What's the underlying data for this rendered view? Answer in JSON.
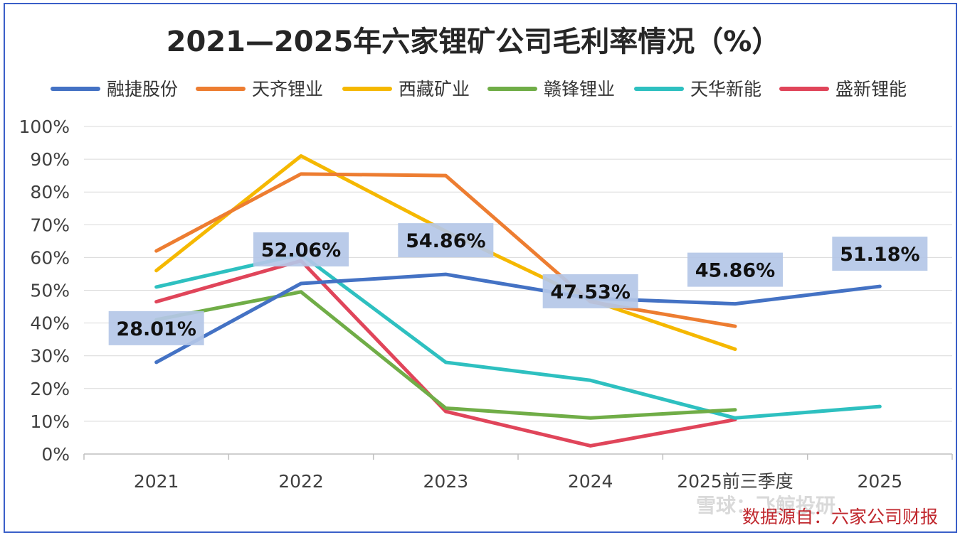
{
  "chart_data": {
    "type": "line",
    "title": "2021—2025年六家锂矿公司毛利率情况（%）",
    "categories": [
      "2021",
      "2022",
      "2023",
      "2024",
      "2025前三季度",
      "2025"
    ],
    "y_ticks": [
      "0%",
      "10%",
      "20%",
      "30%",
      "40%",
      "50%",
      "60%",
      "70%",
      "80%",
      "90%",
      "100%"
    ],
    "ylim": [
      0,
      100
    ],
    "legend_position": "top",
    "grid": true,
    "series": [
      {
        "name": "融捷股份",
        "color": "#4472c4",
        "values": [
          28.01,
          52.06,
          54.86,
          47.53,
          45.86,
          51.18
        ]
      },
      {
        "name": "天齐锂业",
        "color": "#ed7d31",
        "values": [
          62,
          85.5,
          85,
          46.5,
          39,
          null
        ]
      },
      {
        "name": "西藏矿业",
        "color": "#f5b800",
        "values": [
          56,
          91,
          68,
          47,
          32,
          null
        ]
      },
      {
        "name": "赣锋锂业",
        "color": "#70ad47",
        "values": [
          41,
          49.5,
          14,
          11,
          13.5,
          null
        ]
      },
      {
        "name": "天华新能",
        "color": "#2ec0c0",
        "values": [
          51,
          61,
          28,
          22.5,
          11,
          14.5
        ]
      },
      {
        "name": "盛新锂能",
        "color": "#e0455a",
        "values": [
          46.5,
          59,
          13,
          2.5,
          10.5,
          null
        ]
      }
    ],
    "annotations": [
      {
        "text": "28.01%"
      },
      {
        "text": "52.06%"
      },
      {
        "text": "54.86%"
      },
      {
        "text": "47.53%"
      },
      {
        "text": "45.86%"
      },
      {
        "text": "51.18%"
      }
    ],
    "source": "数据源自：六家公司财报"
  },
  "watermark": "雪球：飞鲸投研"
}
